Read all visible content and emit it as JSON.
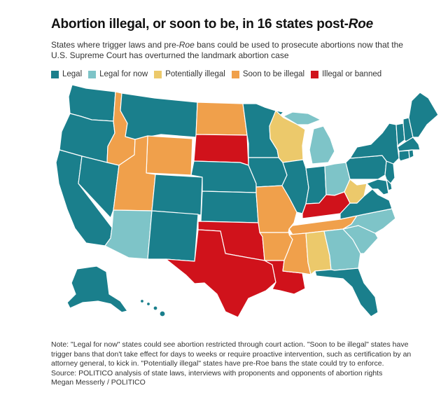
{
  "title_main": "Abortion illegal, or soon to be, in 16 states post-",
  "title_em": "Roe",
  "subtitle": {
    "part1": "States where trigger laws and pre-",
    "em": "Roe",
    "part2": " bans could be used to prosecute abortions now that the U.S. Supreme Court has overturned the landmark abortion case"
  },
  "legend": [
    {
      "label": "Legal",
      "color": "#1a7f8c"
    },
    {
      "label": "Legal for now",
      "color": "#7ec4c8"
    },
    {
      "label": "Potentially illegal",
      "color": "#ecc96b"
    },
    {
      "label": "Soon to be illegal",
      "color": "#f0a04b"
    },
    {
      "label": "Illegal or banned",
      "color": "#d0121b"
    }
  ],
  "note": "Note: \"Legal for now\" states could see abortion restricted through court action. \"Soon to be illegal\" states have trigger bans that don't take effect for days to weeks or require proactive intervention, such as certification by an attorney general, to kick in. \"Potentially illegal\" states have pre-Roe bans the state could try to enforce.",
  "source": "Source: POLITICO analysis of state laws, interviews with proponents and opponents of abortion rights",
  "credit": "Megan Messerly / POLITICO"
}
